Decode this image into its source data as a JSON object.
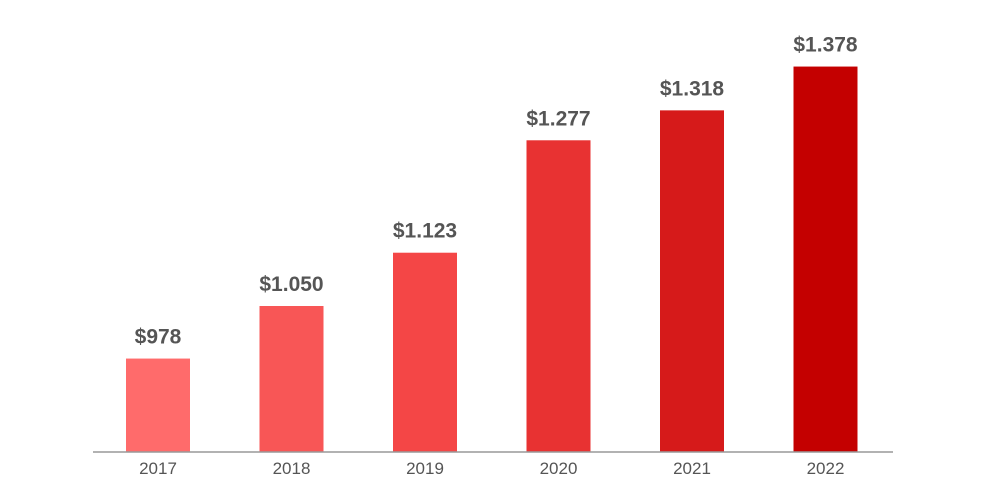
{
  "chart_data": {
    "type": "bar",
    "categories": [
      "2017",
      "2018",
      "2019",
      "2020",
      "2021",
      "2022"
    ],
    "values": [
      978,
      1050,
      1123,
      1277,
      1318,
      1378
    ],
    "value_labels": [
      "$978",
      "$1.050",
      "$1.123",
      "$1.277",
      "$1.318",
      "$1.378"
    ],
    "title": "",
    "xlabel": "",
    "ylabel": "",
    "ylim": [
      850,
      1450
    ],
    "grid": false,
    "legend": "none",
    "bar_colors": [
      "#ff6b6b",
      "#f85656",
      "#f44646",
      "#e83232",
      "#d61a1a",
      "#c40000"
    ],
    "label_color": "#555555",
    "axis_color": "#999999"
  }
}
